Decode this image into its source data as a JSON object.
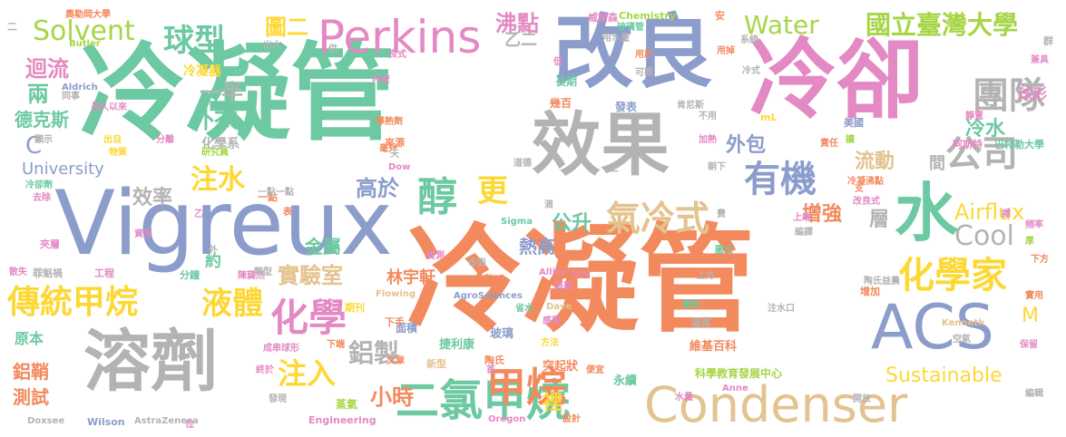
{
  "palette": {
    "green": "#6cc9a1",
    "orange": "#f28a5e",
    "blue": "#8c9dcc",
    "pink": "#e389c3",
    "lime": "#a6d646",
    "yellow": "#fdd835",
    "tan": "#e3c38f",
    "gray": "#b3b3b3"
  },
  "words": [
    {
      "text": "冷凝管",
      "color": "green"
    },
    {
      "text": "冷凝管",
      "color": "orange"
    },
    {
      "text": "Vigreux",
      "color": "blue"
    },
    {
      "text": "改良",
      "color": "blue"
    },
    {
      "text": "冷卻",
      "color": "pink"
    },
    {
      "text": "效果",
      "color": "gray"
    },
    {
      "text": "溶劑",
      "color": "gray"
    },
    {
      "text": "Condenser",
      "color": "tan"
    },
    {
      "text": "ACS",
      "color": "blue"
    },
    {
      "text": "水",
      "color": "green"
    },
    {
      "text": "Perkins",
      "color": "pink"
    },
    {
      "text": "二氯甲烷",
      "color": "green"
    },
    {
      "text": "傳統甲烷",
      "color": "yellow"
    },
    {
      "text": "化學家",
      "color": "yellow"
    },
    {
      "text": "有機",
      "color": "blue"
    },
    {
      "text": "公司",
      "color": "gray"
    },
    {
      "text": "化學",
      "color": "pink"
    },
    {
      "text": "氣冷式",
      "color": "tan"
    },
    {
      "text": "Water",
      "color": "lime"
    },
    {
      "text": "國立臺灣大學",
      "color": "lime"
    },
    {
      "text": "球型",
      "color": "green"
    },
    {
      "text": "Solvent",
      "color": "lime"
    },
    {
      "text": "團隊",
      "color": "gray"
    },
    {
      "text": "液體",
      "color": "yellow"
    },
    {
      "text": "注水",
      "color": "yellow"
    },
    {
      "text": "注入",
      "color": "yellow"
    },
    {
      "text": "實驗室",
      "color": "tan"
    },
    {
      "text": "Sustainable",
      "color": "yellow"
    },
    {
      "text": "Cool",
      "color": "gray"
    },
    {
      "text": "Airflux",
      "color": "yellow"
    },
    {
      "text": "醇",
      "color": "green"
    },
    {
      "text": "更",
      "color": "yellow"
    },
    {
      "text": "小時",
      "color": "orange"
    },
    {
      "text": "甲烷",
      "color": "orange"
    },
    {
      "text": "鋁製",
      "color": "gray"
    },
    {
      "text": "增強",
      "color": "orange"
    },
    {
      "text": "流動",
      "color": "tan"
    },
    {
      "text": "冷水",
      "color": "green"
    },
    {
      "text": "外衣",
      "color": "green"
    },
    {
      "text": "沸點",
      "color": "pink"
    },
    {
      "text": "高於",
      "color": "blue"
    },
    {
      "text": "金屬",
      "color": "green"
    },
    {
      "text": "熱高",
      "color": "blue"
    },
    {
      "text": "外包",
      "color": "blue"
    },
    {
      "text": "林宇軒",
      "color": "orange"
    },
    {
      "text": "公升",
      "color": "green"
    },
    {
      "text": "圖二",
      "color": "yellow"
    },
    {
      "text": "效率",
      "color": "gray"
    },
    {
      "text": "一半",
      "color": "gray"
    },
    {
      "text": "迴流",
      "color": "pink"
    },
    {
      "text": "兩",
      "color": "green"
    },
    {
      "text": "德克斯",
      "color": "green"
    },
    {
      "text": "鋁鞘",
      "color": "orange"
    },
    {
      "text": "測試",
      "color": "orange"
    },
    {
      "text": "原本",
      "color": "green"
    },
    {
      "text": "University",
      "color": "blue"
    },
    {
      "text": "C",
      "color": "blue"
    },
    {
      "text": "層",
      "color": "gray"
    },
    {
      "text": "間",
      "color": "gray"
    },
    {
      "text": "球形",
      "color": "pink"
    },
    {
      "text": "M",
      "color": "yellow"
    },
    {
      "text": "裡",
      "color": "yellow"
    },
    {
      "text": "化學系",
      "color": "gray"
    },
    {
      "text": "冷凝器",
      "color": "yellow"
    },
    {
      "text": "巴特勒大學",
      "color": "green"
    },
    {
      "text": "美國",
      "color": "blue"
    },
    {
      "text": "阿斯特",
      "color": "pink"
    },
    {
      "text": "科學教育發展中心",
      "color": "lime"
    },
    {
      "text": "維基百科",
      "color": "orange"
    },
    {
      "text": "捷利康",
      "color": "green"
    },
    {
      "text": "突起狀",
      "color": "orange"
    },
    {
      "text": "玻璃",
      "color": "blue"
    },
    {
      "text": "永續",
      "color": "green"
    },
    {
      "text": "蒸氣",
      "color": "lime"
    },
    {
      "text": "幾百",
      "color": "orange"
    },
    {
      "text": "長期",
      "color": "green"
    },
    {
      "text": "發表",
      "color": "blue"
    },
    {
      "text": "面積",
      "color": "blue"
    },
    {
      "text": "Chemistry",
      "color": "lime"
    },
    {
      "text": "威爾森",
      "color": "pink"
    },
    {
      "text": "玻璃管",
      "color": "green"
    },
    {
      "text": "奧勒岡大學",
      "color": "orange"
    },
    {
      "text": "Engineering",
      "color": "pink"
    },
    {
      "text": "Wilson",
      "color": "blue"
    },
    {
      "text": "AstraZeneca",
      "color": "gray"
    },
    {
      "text": "Doxsee",
      "color": "gray"
    },
    {
      "text": "Oregon",
      "color": "pink"
    },
    {
      "text": "AgroSciences",
      "color": "blue"
    },
    {
      "text": "Flowing",
      "color": "tan"
    },
    {
      "text": "Allihn",
      "color": "pink"
    },
    {
      "text": "Dave",
      "color": "tan"
    },
    {
      "text": "Sigma",
      "color": "green"
    },
    {
      "text": "Aldrich",
      "color": "blue"
    },
    {
      "text": "Butler",
      "color": "lime"
    },
    {
      "text": "Kenneth",
      "color": "tan"
    },
    {
      "text": "Anne",
      "color": "pink"
    },
    {
      "text": "Dow",
      "color": "pink"
    },
    {
      "text": "mL",
      "color": "yellow"
    },
    {
      "text": "乙二",
      "color": "gray"
    },
    {
      "text": "一點",
      "color": "orange"
    },
    {
      "text": "約",
      "color": "green"
    },
    {
      "text": "工程",
      "color": "pink"
    },
    {
      "text": "分鐘",
      "color": "green"
    },
    {
      "text": "罪魁禍",
      "color": "gray"
    },
    {
      "text": "夾層",
      "color": "pink"
    },
    {
      "text": "散失",
      "color": "pink"
    },
    {
      "text": "資深",
      "color": "pink"
    },
    {
      "text": "冷卻劑",
      "color": "green"
    },
    {
      "text": "去除",
      "color": "pink"
    },
    {
      "text": "顯示",
      "color": "gray"
    },
    {
      "text": "出自",
      "color": "yellow"
    },
    {
      "text": "物質",
      "color": "yellow"
    },
    {
      "text": "分離",
      "color": "pink"
    },
    {
      "text": "研究員",
      "color": "lime"
    },
    {
      "text": "來源",
      "color": "orange"
    },
    {
      "text": "導熱劑",
      "color": "orange"
    },
    {
      "text": "陳藹然",
      "color": "pink"
    },
    {
      "text": "成串球形",
      "color": "pink"
    },
    {
      "text": "期刊",
      "color": "yellow"
    },
    {
      "text": "下手",
      "color": "orange"
    },
    {
      "text": "下端",
      "color": "orange"
    },
    {
      "text": "發現",
      "color": "gray"
    },
    {
      "text": "文章",
      "color": "orange"
    },
    {
      "text": "終於",
      "color": "pink"
    },
    {
      "text": "新型",
      "color": "tan"
    },
    {
      "text": "陶氏",
      "color": "orange"
    },
    {
      "text": "首",
      "color": "pink"
    },
    {
      "text": "消耗",
      "color": "pink"
    },
    {
      "text": "公分",
      "color": "pink"
    },
    {
      "text": "方法",
      "color": "yellow"
    },
    {
      "text": "感冒",
      "color": "pink"
    },
    {
      "text": "省水",
      "color": "green"
    },
    {
      "text": "便宜",
      "color": "orange"
    },
    {
      "text": "設計",
      "color": "orange"
    },
    {
      "text": "溫度",
      "color": "gray"
    },
    {
      "text": "穩定",
      "color": "green"
    },
    {
      "text": "上方",
      "color": "gray"
    },
    {
      "text": "增加",
      "color": "orange"
    },
    {
      "text": "注水口",
      "color": "gray"
    },
    {
      "text": "陶氏益農",
      "color": "gray"
    },
    {
      "text": "空氣",
      "color": "gray"
    },
    {
      "text": "保留",
      "color": "pink"
    },
    {
      "text": "開放",
      "color": "gray"
    },
    {
      "text": "水量",
      "color": "pink"
    },
    {
      "text": "編輯",
      "color": "gray"
    },
    {
      "text": "實用",
      "color": "orange"
    },
    {
      "text": "下方",
      "color": "orange"
    },
    {
      "text": "厚",
      "color": "lime"
    },
    {
      "text": "頻率",
      "color": "pink"
    },
    {
      "text": "譯",
      "color": "pink"
    },
    {
      "text": "改良式",
      "color": "pink"
    },
    {
      "text": "冷凝沸點",
      "color": "orange"
    },
    {
      "text": "支",
      "color": "orange"
    },
    {
      "text": "朝下",
      "color": "gray"
    },
    {
      "text": "責任",
      "color": "orange"
    },
    {
      "text": "讀",
      "color": "lime"
    },
    {
      "text": "加熱",
      "color": "pink"
    },
    {
      "text": "靜置",
      "color": "pink"
    },
    {
      "text": "群",
      "color": "gray"
    },
    {
      "text": "兼具",
      "color": "pink"
    },
    {
      "text": "可觀",
      "color": "gray"
    },
    {
      "text": "用掉",
      "color": "orange"
    },
    {
      "text": "系統",
      "color": "gray"
    },
    {
      "text": "用於",
      "color": "orange"
    },
    {
      "text": "低",
      "color": "pink"
    },
    {
      "text": "良式",
      "color": "pink"
    },
    {
      "text": "供",
      "color": "gray"
    },
    {
      "text": "出水",
      "color": "gray"
    },
    {
      "text": "內管",
      "color": "pink"
    },
    {
      "text": "同事",
      "color": "gray"
    },
    {
      "text": "長久以來",
      "color": "pink"
    },
    {
      "text": "肯尼斯",
      "color": "gray"
    },
    {
      "text": "不用",
      "color": "gray"
    },
    {
      "text": "安",
      "color": "orange"
    },
    {
      "text": "實測",
      "color": "pink"
    },
    {
      "text": "市面",
      "color": "gray"
    },
    {
      "text": "道德",
      "color": "gray"
    },
    {
      "text": "散熱",
      "color": "orange"
    },
    {
      "text": "滴",
      "color": "gray"
    },
    {
      "text": "費",
      "color": "gray"
    },
    {
      "text": "編譯",
      "color": "gray"
    },
    {
      "text": "上端",
      "color": "pink"
    },
    {
      "text": "圖三",
      "color": "green"
    },
    {
      "text": "類型",
      "color": "gray"
    },
    {
      "text": "毫升",
      "color": "orange"
    },
    {
      "text": "天",
      "color": "gray"
    },
    {
      "text": "一點一點",
      "color": "gray"
    },
    {
      "text": "表",
      "color": "orange"
    },
    {
      "text": "位",
      "color": "pink"
    },
    {
      "text": "外",
      "color": "gray"
    },
    {
      "text": "乙",
      "color": "pink"
    },
    {
      "text": "三",
      "color": "gray"
    },
    {
      "text": "二",
      "color": "gray"
    },
    {
      "text": "用水量",
      "color": "gray"
    },
    {
      "text": "冷式",
      "color": "gray"
    }
  ]
}
